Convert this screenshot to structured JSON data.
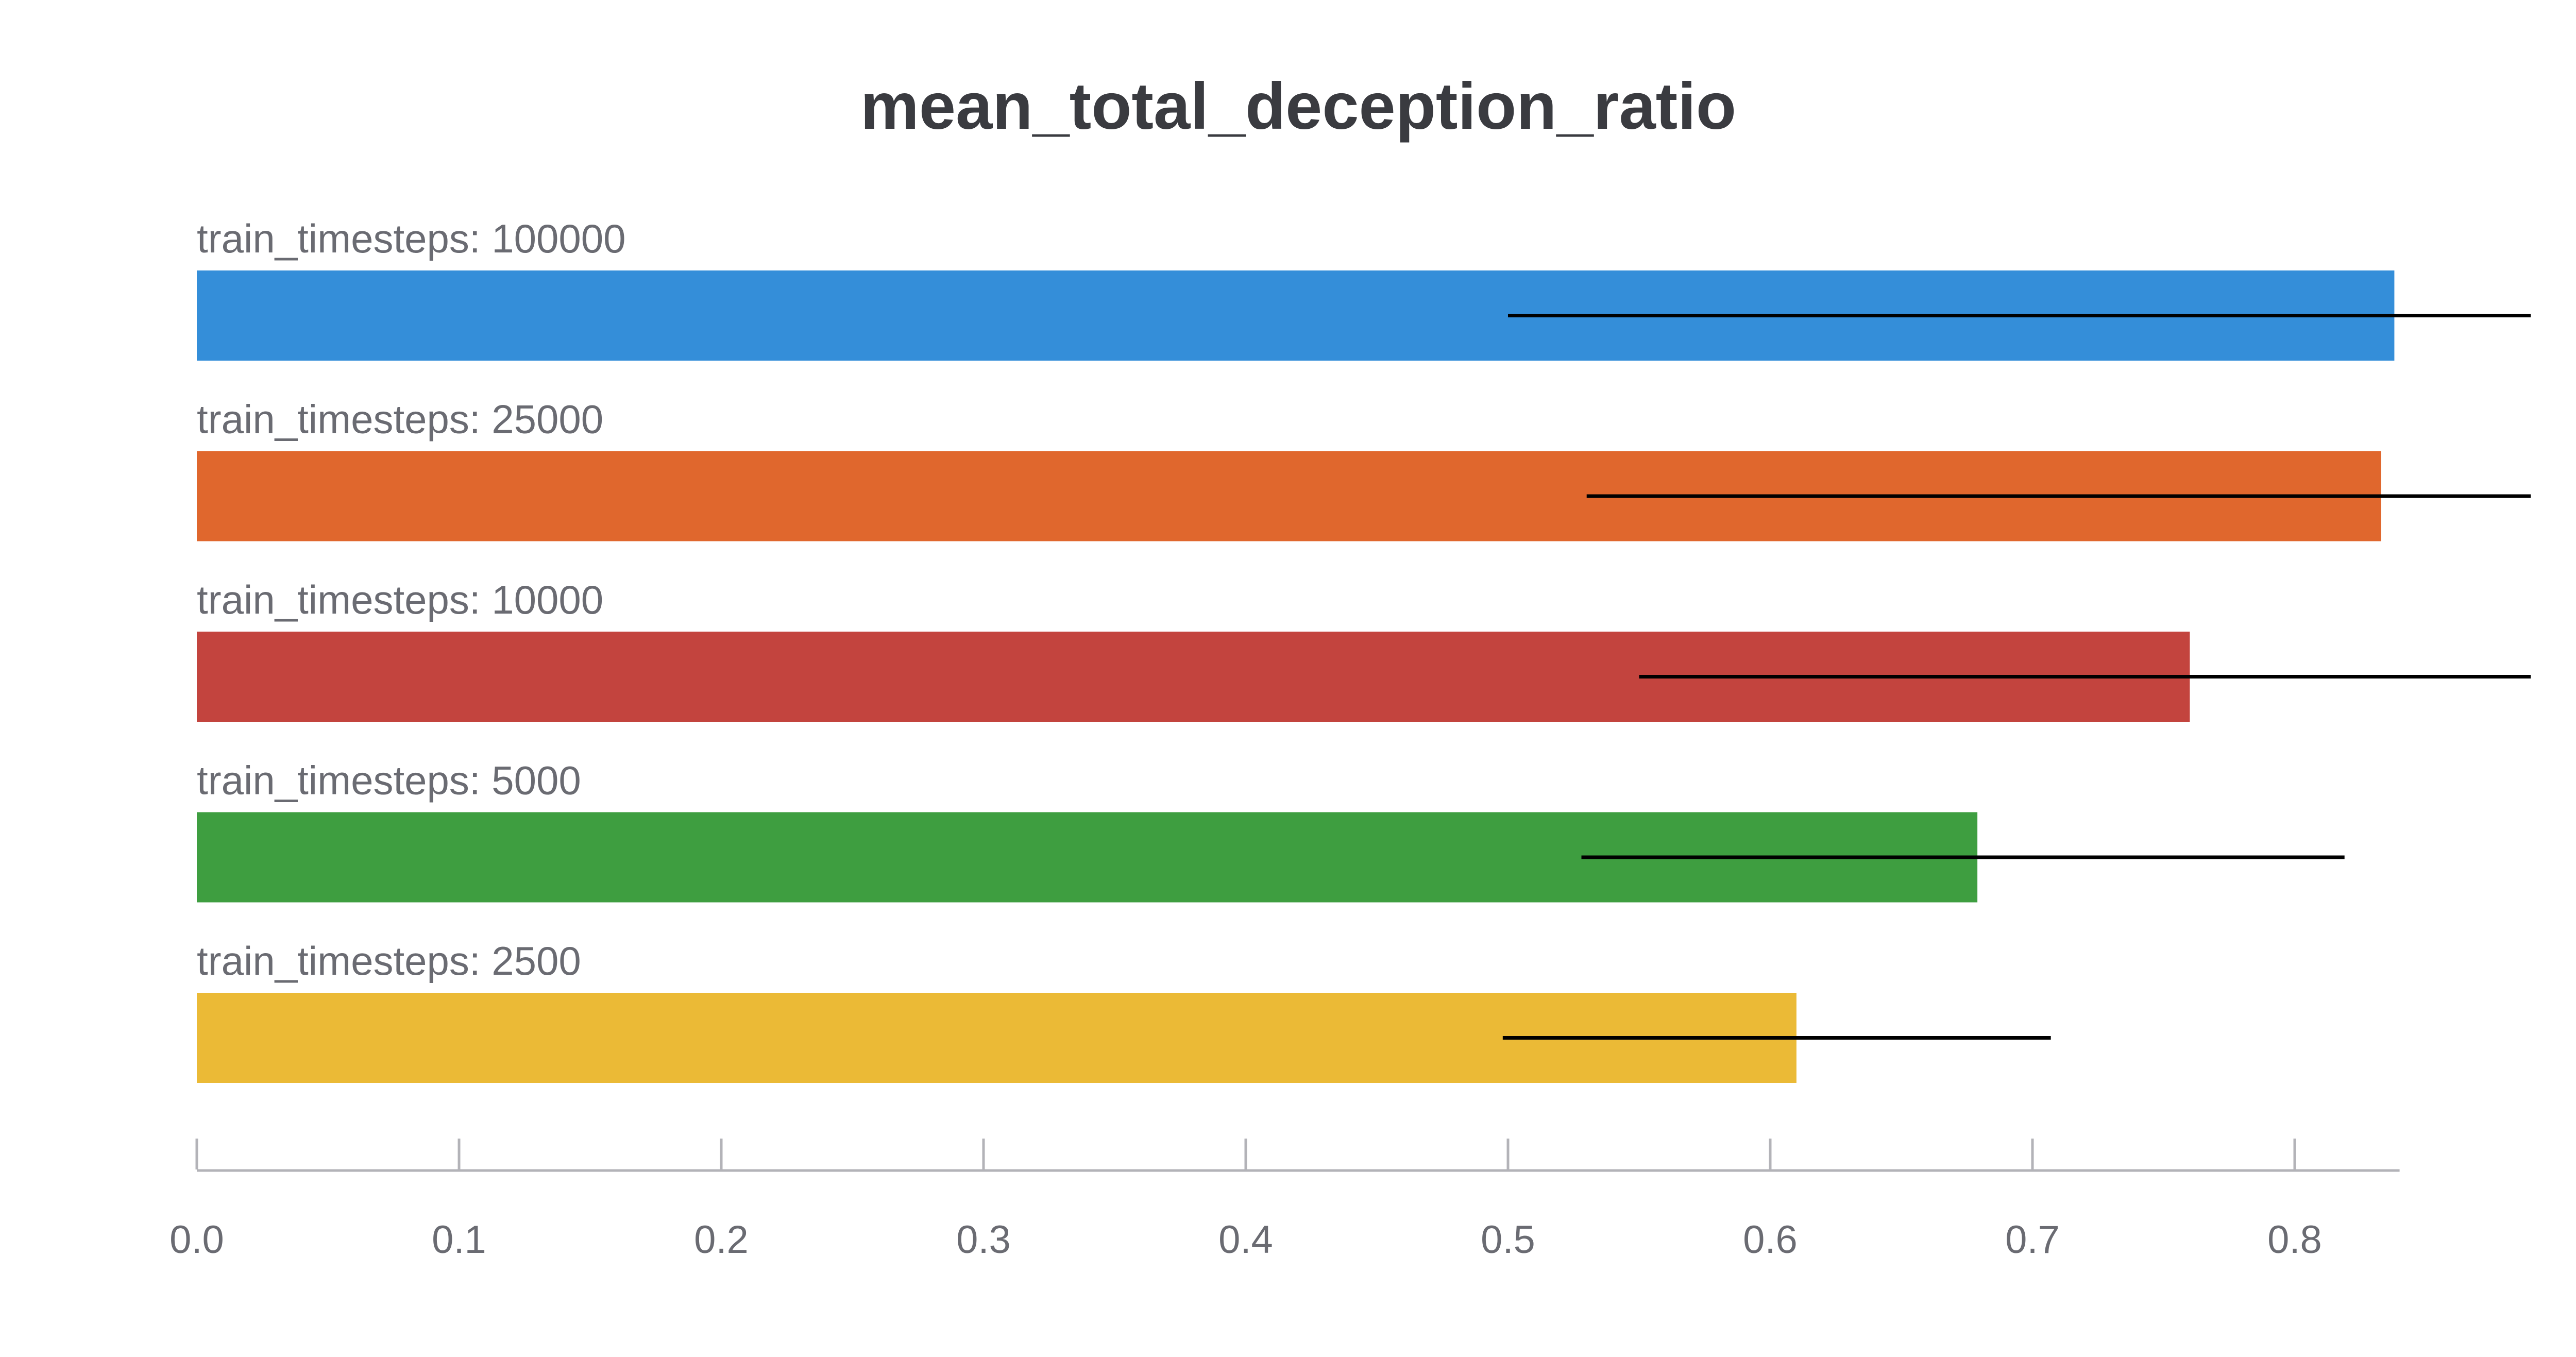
{
  "chart_data": {
    "type": "bar",
    "orientation": "horizontal",
    "title": "mean_total_deception_ratio",
    "xlabel": "",
    "ylabel": "",
    "xlim": [
      0,
      0.84
    ],
    "xticks": [
      "0.0",
      "0.1",
      "0.2",
      "0.3",
      "0.4",
      "0.5",
      "0.6",
      "0.7",
      "0.8"
    ],
    "grid": false,
    "legend": "none",
    "categories": [
      "train_timesteps: 100000",
      "train_timesteps: 25000",
      "train_timesteps: 10000",
      "train_timesteps: 5000",
      "train_timesteps: 2500"
    ],
    "values": [
      0.838,
      0.833,
      0.76,
      0.679,
      0.61
    ],
    "error_bars": [
      [
        0.5,
        0.89
      ],
      [
        0.53,
        0.89
      ],
      [
        0.55,
        0.89
      ],
      [
        0.528,
        0.819
      ],
      [
        0.498,
        0.707
      ]
    ],
    "colors": [
      "#348ed9",
      "#e0672d",
      "#c3443e",
      "#3e9e40",
      "#ebba36"
    ],
    "error_bar_color": "#000000",
    "axis_color": "#b3b3b8"
  }
}
